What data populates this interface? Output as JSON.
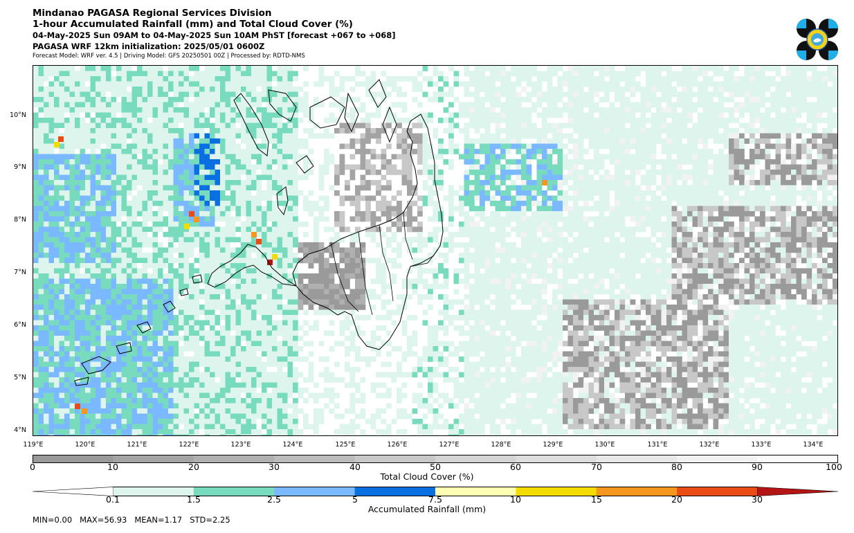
{
  "header": {
    "agency": "Mindanao PAGASA Regional Services Division",
    "product": "1-hour Accumulated Rainfall (mm) and Total Cloud Cover (%)",
    "valid_time": "04-May-2025 Sun 09AM to 04-May-2025 Sun 10AM PhST [forecast +067 to +068]",
    "init": "PAGASA WRF 12km initialization: 2025/05/01 0600Z",
    "info": "Forecast Model: WRF ver. 4.5 | Driving Model: GFS 20250501 00Z | Processed by: RDTD-NMS"
  },
  "map": {
    "lat_labels": [
      "10°N",
      "9°N",
      "8°N",
      "7°N",
      "6°N",
      "5°N",
      "4°N"
    ],
    "lon_labels": [
      "119°E",
      "120°E",
      "121°E",
      "122°E",
      "123°E",
      "124°E",
      "125°E",
      "126°E",
      "127°E",
      "128°E",
      "129°E",
      "130°E",
      "131°E",
      "132°E",
      "133°E",
      "134°E"
    ]
  },
  "cloud_colorbar": {
    "label": "Total Cloud Cover (%)",
    "ticks": [
      "0",
      "10",
      "20",
      "30",
      "40",
      "50",
      "60",
      "70",
      "80",
      "90",
      "100"
    ],
    "colors": [
      "#9a9a9a",
      "#a4a4a4",
      "#b0b0b0",
      "#bcbcbc",
      "#c8c8c8",
      "#d4d4d4",
      "#dedede",
      "#e8e8e8",
      "#f2f2f2",
      "#fafafa"
    ]
  },
  "rain_colorbar": {
    "label": "Accumulated Rainfall (mm)",
    "ticks": [
      "0.1",
      "1.5",
      "2.5",
      "5",
      "7.5",
      "10",
      "15",
      "20",
      "30"
    ],
    "colors": [
      "#ffffff",
      "#ddf5ec",
      "#78dbbd",
      "#7ab8ff",
      "#0a6fe0",
      "#ffffb4",
      "#f5dc00",
      "#f5961e",
      "#eb4b14",
      "#b41414"
    ]
  },
  "stats": {
    "min": "MIN=0.00",
    "max": "MAX=56.93",
    "mean": "MEAN=1.17",
    "std": "STD=2.25"
  }
}
